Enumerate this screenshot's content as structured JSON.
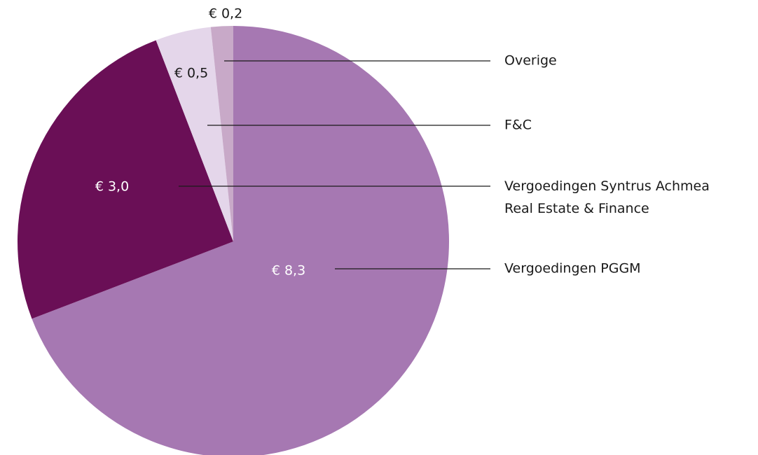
{
  "chart_data": {
    "type": "pie",
    "categories": [
      "Vergoedingen PGGM",
      "Vergoedingen Syntrus Achmea Real Estate & Finance",
      "F&C",
      "Overige"
    ],
    "values": [
      8.3,
      3.0,
      0.5,
      0.2
    ],
    "value_labels": [
      "€ 8,3",
      "€ 3,0",
      "€ 0,5",
      "€ 0,2"
    ],
    "colors": [
      "#a678b2",
      "#6a0f56",
      "#e4d6ea",
      "#c8a9c8"
    ]
  }
}
